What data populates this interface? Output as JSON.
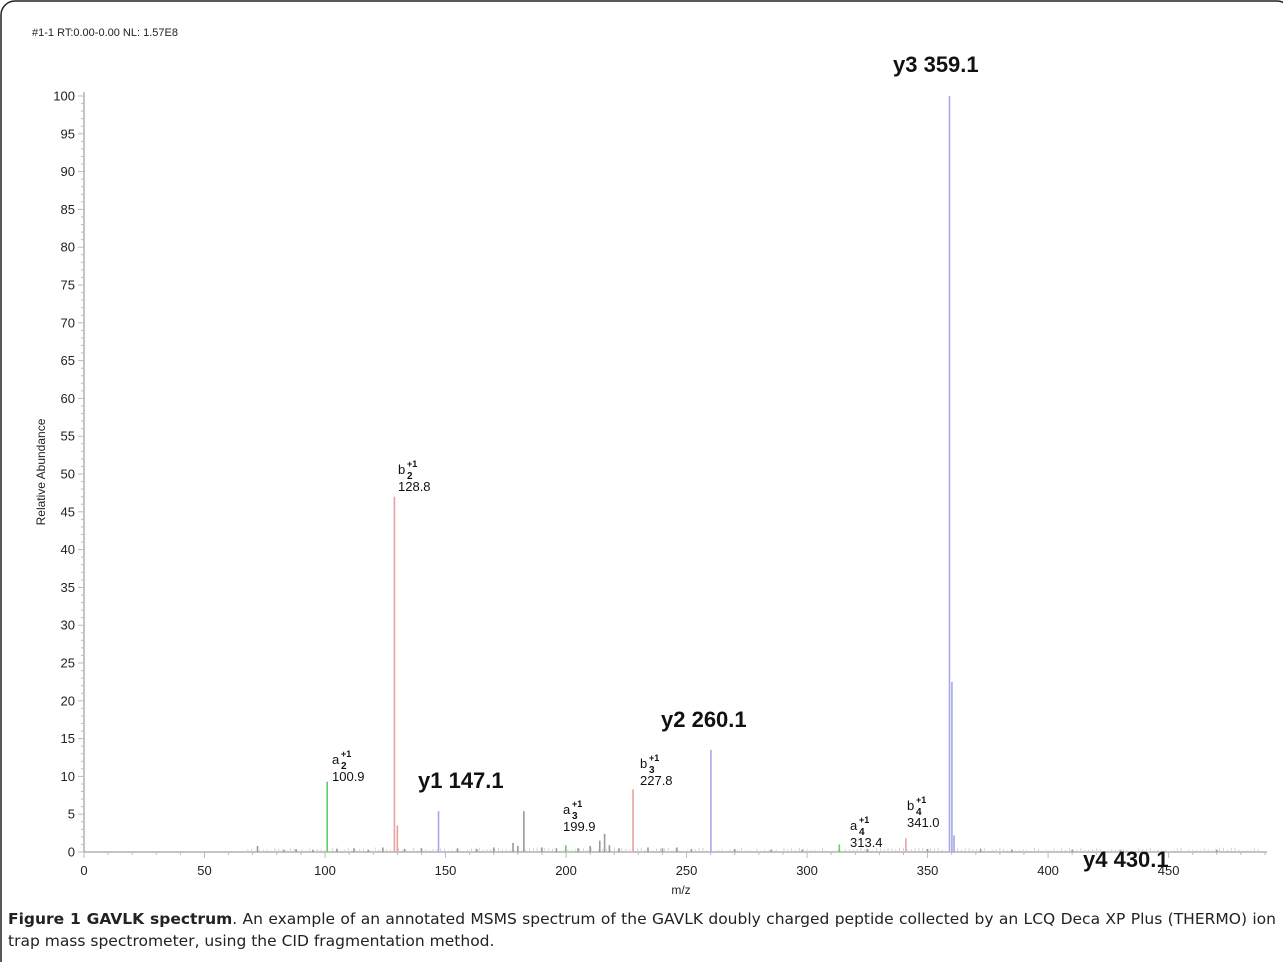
{
  "chart_data": {
    "type": "bar",
    "header": "#1-1 RT:0.00-0.00 NL: 1.57E8",
    "xlabel": "m/z",
    "ylabel": "Relative Abundance",
    "xlim": [
      0,
      490
    ],
    "ylim": [
      0,
      100
    ],
    "x_ticks": [
      0,
      50,
      100,
      150,
      200,
      250,
      300,
      350,
      400,
      450
    ],
    "y_ticks": [
      0,
      5,
      10,
      15,
      20,
      25,
      30,
      35,
      40,
      45,
      50,
      55,
      60,
      65,
      70,
      75,
      80,
      85,
      90,
      95,
      100
    ],
    "colors": {
      "a_ion": "#66cc66",
      "b_ion": "#e8a0a0",
      "y_ion": "#a8a8e8",
      "other": "#999999",
      "axis": "#888888",
      "tick_label": "#222222"
    },
    "peaks": [
      {
        "mz": 72,
        "intensity": 0.8,
        "ion": "other"
      },
      {
        "mz": 83,
        "intensity": 0.3,
        "ion": "other"
      },
      {
        "mz": 88,
        "intensity": 0.4,
        "ion": "other"
      },
      {
        "mz": 95,
        "intensity": 0.3,
        "ion": "other"
      },
      {
        "mz": 100.9,
        "intensity": 9.3,
        "ion": "a"
      },
      {
        "mz": 105,
        "intensity": 0.4,
        "ion": "other"
      },
      {
        "mz": 112,
        "intensity": 0.5,
        "ion": "other"
      },
      {
        "mz": 118,
        "intensity": 0.3,
        "ion": "other"
      },
      {
        "mz": 124,
        "intensity": 0.6,
        "ion": "other"
      },
      {
        "mz": 128.8,
        "intensity": 47.0,
        "ion": "b"
      },
      {
        "mz": 130,
        "intensity": 3.5,
        "ion": "b"
      },
      {
        "mz": 133,
        "intensity": 0.4,
        "ion": "other"
      },
      {
        "mz": 140,
        "intensity": 0.5,
        "ion": "other"
      },
      {
        "mz": 147.1,
        "intensity": 5.4,
        "ion": "y"
      },
      {
        "mz": 155,
        "intensity": 0.5,
        "ion": "other"
      },
      {
        "mz": 163,
        "intensity": 0.4,
        "ion": "other"
      },
      {
        "mz": 170,
        "intensity": 0.6,
        "ion": "other"
      },
      {
        "mz": 178,
        "intensity": 1.2,
        "ion": "other"
      },
      {
        "mz": 180,
        "intensity": 0.8,
        "ion": "other"
      },
      {
        "mz": 182.5,
        "intensity": 5.4,
        "ion": "other"
      },
      {
        "mz": 190,
        "intensity": 0.6,
        "ion": "other"
      },
      {
        "mz": 196,
        "intensity": 0.5,
        "ion": "other"
      },
      {
        "mz": 199.9,
        "intensity": 0.9,
        "ion": "a"
      },
      {
        "mz": 205,
        "intensity": 0.5,
        "ion": "other"
      },
      {
        "mz": 210,
        "intensity": 0.8,
        "ion": "other"
      },
      {
        "mz": 214,
        "intensity": 1.5,
        "ion": "other"
      },
      {
        "mz": 216,
        "intensity": 2.4,
        "ion": "other"
      },
      {
        "mz": 218,
        "intensity": 0.9,
        "ion": "other"
      },
      {
        "mz": 222,
        "intensity": 0.5,
        "ion": "other"
      },
      {
        "mz": 227.8,
        "intensity": 8.3,
        "ion": "b"
      },
      {
        "mz": 234,
        "intensity": 0.6,
        "ion": "other"
      },
      {
        "mz": 240,
        "intensity": 0.5,
        "ion": "other"
      },
      {
        "mz": 246,
        "intensity": 0.6,
        "ion": "other"
      },
      {
        "mz": 252,
        "intensity": 0.4,
        "ion": "other"
      },
      {
        "mz": 260.1,
        "intensity": 13.5,
        "ion": "y"
      },
      {
        "mz": 270,
        "intensity": 0.4,
        "ion": "other"
      },
      {
        "mz": 285,
        "intensity": 0.3,
        "ion": "other"
      },
      {
        "mz": 298,
        "intensity": 0.3,
        "ion": "other"
      },
      {
        "mz": 313.4,
        "intensity": 1.0,
        "ion": "a"
      },
      {
        "mz": 325,
        "intensity": 0.4,
        "ion": "other"
      },
      {
        "mz": 341.0,
        "intensity": 1.8,
        "ion": "b"
      },
      {
        "mz": 350,
        "intensity": 0.4,
        "ion": "other"
      },
      {
        "mz": 359.1,
        "intensity": 100,
        "ion": "y"
      },
      {
        "mz": 360.1,
        "intensity": 22.5,
        "ion": "y"
      },
      {
        "mz": 361,
        "intensity": 2.2,
        "ion": "y"
      },
      {
        "mz": 372,
        "intensity": 0.4,
        "ion": "other"
      },
      {
        "mz": 385,
        "intensity": 0.3,
        "ion": "other"
      },
      {
        "mz": 410,
        "intensity": 0.3,
        "ion": "other"
      },
      {
        "mz": 430.1,
        "intensity": 0.3,
        "ion": "y"
      },
      {
        "mz": 470,
        "intensity": 0.3,
        "ion": "other"
      }
    ],
    "annotations": [
      {
        "id": "a2",
        "ion": "a",
        "charge": "+1",
        "sub": "2",
        "value": "100.9"
      },
      {
        "id": "b2",
        "ion": "b",
        "charge": "+1",
        "sub": "2",
        "value": "128.8"
      },
      {
        "id": "a3",
        "ion": "a",
        "charge": "+1",
        "sub": "3",
        "value": "199.9"
      },
      {
        "id": "b3",
        "ion": "b",
        "charge": "+1",
        "sub": "3",
        "value": "227.8"
      },
      {
        "id": "a4",
        "ion": "a",
        "charge": "+1",
        "sub": "4",
        "value": "313.4"
      },
      {
        "id": "b4",
        "ion": "b",
        "charge": "+1",
        "sub": "4",
        "value": "341.0"
      }
    ],
    "big_labels": [
      {
        "id": "y1",
        "text": "y1 147.1"
      },
      {
        "id": "y2",
        "text": "y2 260.1"
      },
      {
        "id": "y3",
        "text": "y3 359.1"
      },
      {
        "id": "y4",
        "text": "y4 430.1"
      }
    ]
  },
  "caption": {
    "label": "Figure 1 GAVLK spectrum",
    "text": ". An example of an annotated MSMS spectrum of the GAVLK doubly charged peptide collected by an LCQ Deca XP Plus (THERMO) ion trap mass spectrometer, using the CID fragmentation method."
  }
}
